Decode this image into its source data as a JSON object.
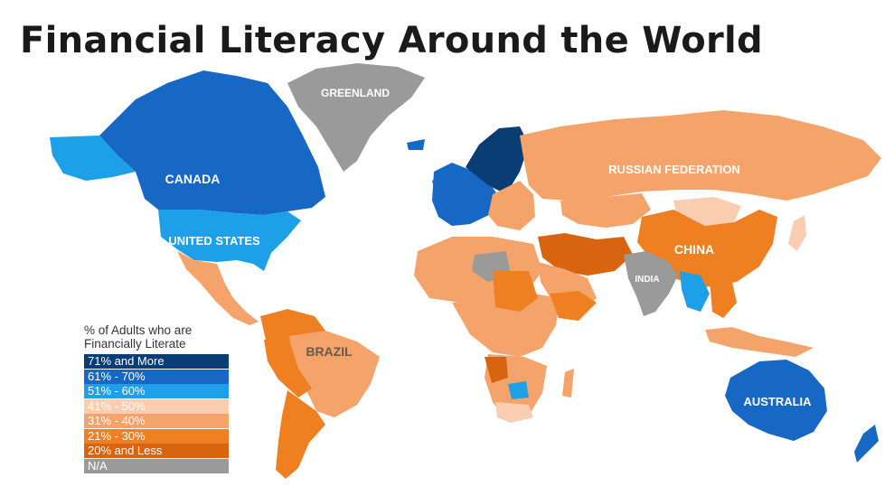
{
  "title": "Financial Literacy Around the World",
  "legend": {
    "title_line1": "% of Adults who are",
    "title_line2": "Financially Literate",
    "items": [
      {
        "label": "71% and More",
        "color": "#0a3d73"
      },
      {
        "label": "61% - 70%",
        "color": "#1668c4"
      },
      {
        "label": "51% - 60%",
        "color": "#1ea0e8"
      },
      {
        "label": "41% - 50%",
        "color": "#f8cdb0"
      },
      {
        "label": "31% - 40%",
        "color": "#f4a36a"
      },
      {
        "label": "21% - 30%",
        "color": "#ef8022"
      },
      {
        "label": "20% and Less",
        "color": "#d8640f"
      },
      {
        "label": "N/A",
        "color": "#9a9a9a"
      }
    ]
  },
  "countries": {
    "greenland": "GREENLAND",
    "canada": "CANADA",
    "united_states": "UNITED STATES",
    "russia": "RUSSIAN FEDERATION",
    "china": "CHINA",
    "india": "INDIA",
    "brazil": "BRAZIL",
    "australia": "AUSTRALIA"
  }
}
